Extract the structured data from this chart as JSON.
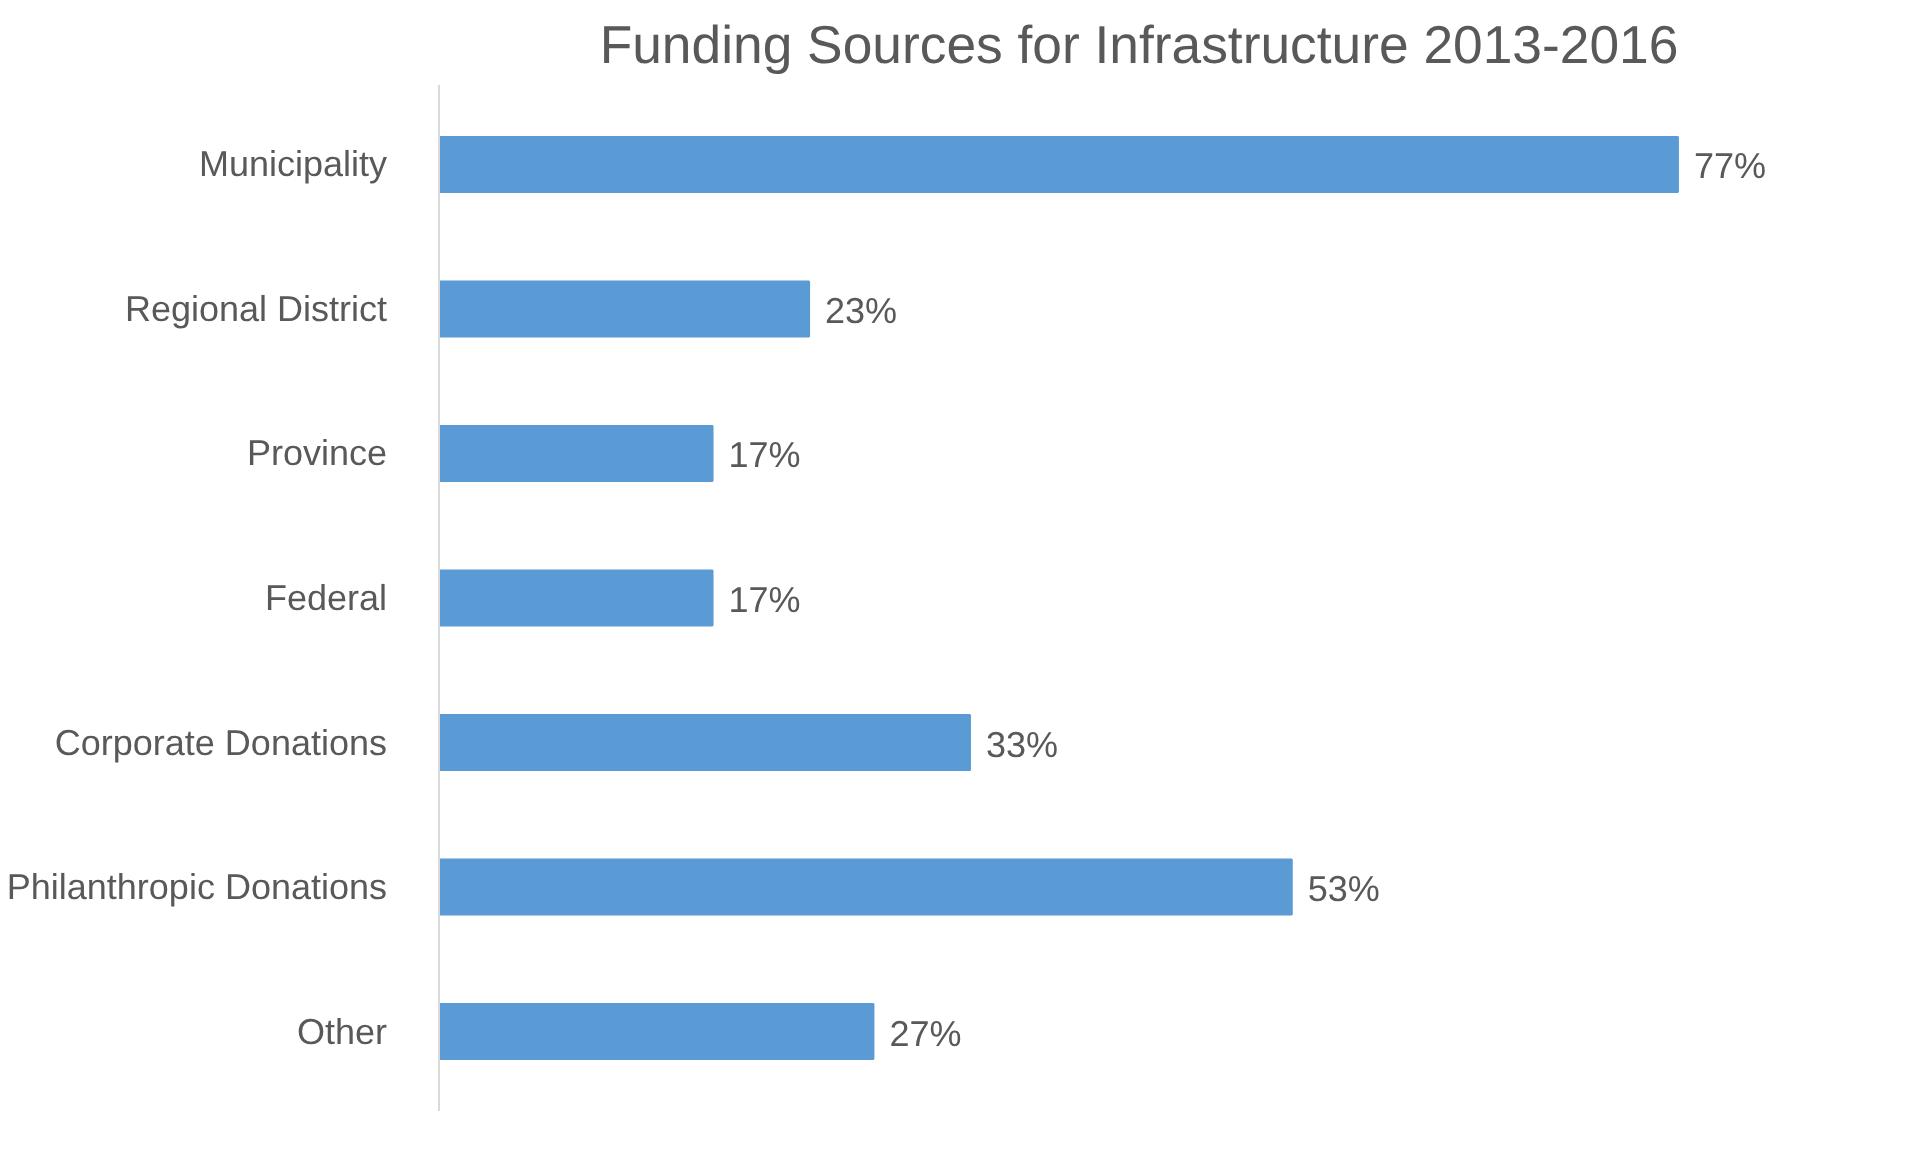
{
  "chart_data": {
    "type": "bar",
    "orientation": "horizontal",
    "title": "Funding Sources for Infrastructure 2013-2016",
    "categories": [
      "Municipality",
      "Regional District",
      "Province",
      "Federal",
      "Corporate Donations",
      "Philanthropic Donations",
      "Other"
    ],
    "values": [
      77,
      23,
      17,
      17,
      33,
      53,
      27
    ],
    "value_labels": [
      "77%",
      "23%",
      "17%",
      "17%",
      "33%",
      "53%",
      "27%"
    ],
    "color": "#5b9bd5",
    "grid": false
  }
}
